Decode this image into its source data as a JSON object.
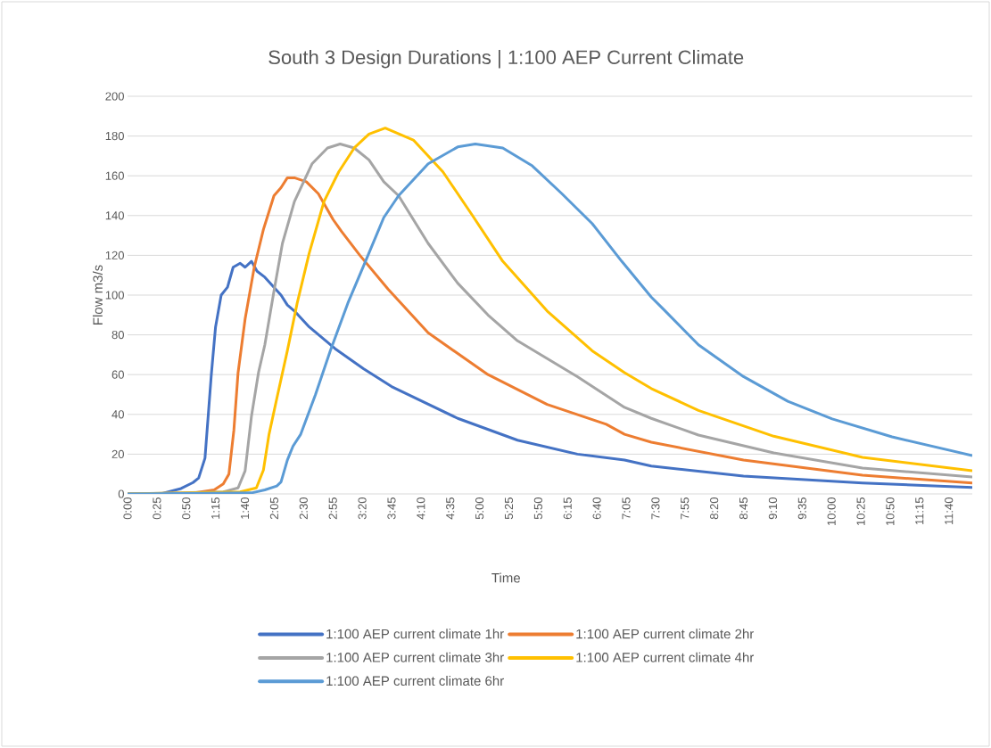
{
  "chart_data": {
    "type": "line",
    "title": "South 3 Design Durations | 1:100 AEP Current Climate",
    "xlabel": "Time",
    "ylabel": "Flow m3/s",
    "xlim": [
      0,
      12
    ],
    "ylim": [
      0,
      200
    ],
    "yticks": [
      0,
      20,
      40,
      60,
      80,
      100,
      120,
      140,
      160,
      180,
      200
    ],
    "xticks": [
      {
        "value": 0,
        "label": "0:00"
      },
      {
        "value": 0.4167,
        "label": "0:25"
      },
      {
        "value": 0.8333,
        "label": "0:50"
      },
      {
        "value": 1.25,
        "label": "1:15"
      },
      {
        "value": 1.6667,
        "label": "1:40"
      },
      {
        "value": 2.0833,
        "label": "2:05"
      },
      {
        "value": 2.5,
        "label": "2:30"
      },
      {
        "value": 2.9167,
        "label": "2:55"
      },
      {
        "value": 3.3333,
        "label": "3:20"
      },
      {
        "value": 3.75,
        "label": "3:45"
      },
      {
        "value": 4.1667,
        "label": "4:10"
      },
      {
        "value": 4.5833,
        "label": "4:35"
      },
      {
        "value": 5,
        "label": "5:00"
      },
      {
        "value": 5.4167,
        "label": "5:25"
      },
      {
        "value": 5.8333,
        "label": "5:50"
      },
      {
        "value": 6.25,
        "label": "6:15"
      },
      {
        "value": 6.6667,
        "label": "6:40"
      },
      {
        "value": 7.0833,
        "label": "7:05"
      },
      {
        "value": 7.5,
        "label": "7:30"
      },
      {
        "value": 7.9167,
        "label": "7:55"
      },
      {
        "value": 8.3333,
        "label": "8:20"
      },
      {
        "value": 8.75,
        "label": "8:45"
      },
      {
        "value": 9.1667,
        "label": "9:10"
      },
      {
        "value": 9.5833,
        "label": "9:35"
      },
      {
        "value": 10,
        "label": "10:00"
      },
      {
        "value": 10.4167,
        "label": "10:25"
      },
      {
        "value": 10.8333,
        "label": "10:50"
      },
      {
        "value": 11.25,
        "label": "11:15"
      },
      {
        "value": 11.6667,
        "label": "11:40"
      }
    ],
    "grid": "y",
    "legend": "bottom",
    "marker": "none",
    "line_style": "solid",
    "series": [
      {
        "name": "1:100 AEP current climate 1hr",
        "color": "#4472c4",
        "x": [
          0,
          0.47,
          0.76,
          0.93,
          1.01,
          1.1,
          1.19,
          1.25,
          1.33,
          1.42,
          1.5,
          1.6,
          1.67,
          1.76,
          1.84,
          1.95,
          2.18,
          2.27,
          2.37,
          2.58,
          2.95,
          3.35,
          3.75,
          4.69,
          5.54,
          6.39,
          7.06,
          7.44,
          8.75,
          10.44,
          12
        ],
        "values": [
          0,
          0,
          2.7,
          5.7,
          8,
          18,
          60,
          84,
          100,
          104,
          114,
          116,
          114,
          117,
          112,
          109,
          100,
          95,
          92,
          84,
          73,
          63,
          54,
          38,
          27,
          20,
          17,
          14,
          9,
          5.5,
          3.2
        ]
      },
      {
        "name": "1:100 AEP current climate 2hr",
        "color": "#ed7d31",
        "x": [
          0,
          0.85,
          1.23,
          1.36,
          1.44,
          1.51,
          1.57,
          1.67,
          1.8,
          1.93,
          2.08,
          2.18,
          2.27,
          2.37,
          2.54,
          2.71,
          2.92,
          3.04,
          3.3,
          3.7,
          4.27,
          5.12,
          5.96,
          6.8,
          7.06,
          7.44,
          8.75,
          10.44,
          12
        ],
        "values": [
          0,
          0,
          2,
          5,
          10,
          32,
          61,
          88,
          114,
          133,
          150,
          154,
          159,
          159,
          157,
          151,
          138,
          132,
          120,
          103,
          81,
          60,
          45,
          35,
          30,
          26,
          17,
          9.4,
          5.5
        ]
      },
      {
        "name": "1:100 AEP current climate 3hr",
        "color": "#a5a5a5",
        "x": [
          0,
          1.36,
          1.57,
          1.67,
          1.76,
          1.86,
          1.95,
          2.08,
          2.2,
          2.37,
          2.62,
          2.84,
          3.02,
          3.22,
          3.43,
          3.64,
          3.85,
          4.27,
          4.69,
          5.12,
          5.54,
          6.39,
          7.06,
          7.44,
          8.11,
          9.18,
          10.44,
          12
        ],
        "values": [
          0,
          1,
          3,
          11.6,
          39,
          61,
          75,
          102,
          126,
          147,
          166,
          174,
          176,
          174,
          168,
          157,
          150,
          126,
          106,
          90,
          77,
          59,
          43.5,
          38,
          29.6,
          20.6,
          13,
          8.5
        ]
      },
      {
        "name": "1:100 AEP current climate 4hr",
        "color": "#ffc000",
        "x": [
          0,
          1.6,
          1.83,
          1.93,
          2.01,
          2.12,
          2.27,
          2.41,
          2.58,
          2.79,
          3.0,
          3.22,
          3.43,
          3.66,
          4.06,
          4.48,
          4.9,
          5.33,
          5.96,
          6.6,
          7.06,
          7.44,
          8.11,
          9.18,
          10.44,
          12
        ],
        "values": [
          0,
          1,
          3,
          12,
          30,
          48,
          72,
          96,
          121,
          147,
          162,
          174,
          181,
          184,
          178,
          162,
          140,
          117,
          92,
          72,
          61,
          53,
          42,
          29,
          18.4,
          11.7
        ]
      },
      {
        "name": "1:100 AEP current climate 6hr",
        "color": "#5b9bd5",
        "x": [
          0,
          1.76,
          1.95,
          2.12,
          2.18,
          2.27,
          2.35,
          2.46,
          2.67,
          2.88,
          3.13,
          3.38,
          3.64,
          3.85,
          4.27,
          4.69,
          4.94,
          5.33,
          5.75,
          6.17,
          6.6,
          7.02,
          7.44,
          7.61,
          8.11,
          8.75,
          9.38,
          10.01,
          10.86,
          12
        ],
        "values": [
          0,
          0.5,
          2,
          4,
          6,
          17,
          24,
          30,
          50,
          72,
          96,
          117,
          139,
          150,
          166,
          174.5,
          176,
          174,
          165,
          151,
          136,
          117,
          99,
          93,
          75,
          59,
          46.6,
          37.7,
          28.7,
          19.3
        ]
      }
    ]
  }
}
